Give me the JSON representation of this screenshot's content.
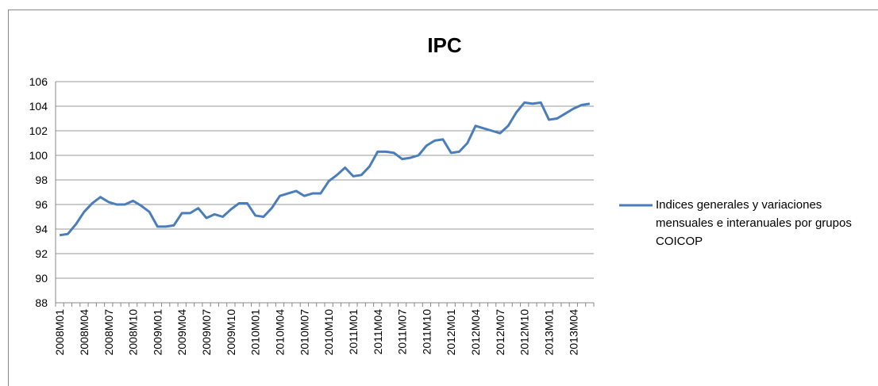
{
  "chart_data": {
    "type": "line",
    "title": "IPC",
    "categories": [
      "2008M01",
      null,
      null,
      "2008M04",
      null,
      null,
      "2008M07",
      null,
      null,
      "2008M10",
      null,
      null,
      "2009M01",
      null,
      null,
      "2009M04",
      null,
      null,
      "2009M07",
      null,
      null,
      "2009M10",
      null,
      null,
      "2010M01",
      null,
      null,
      "2010M04",
      null,
      null,
      "2010M07",
      null,
      null,
      "2010M10",
      null,
      null,
      "2011M01",
      null,
      null,
      "2011M04",
      null,
      null,
      "2011M07",
      null,
      null,
      "2011M10",
      null,
      null,
      "2012M01",
      null,
      null,
      "2012M04",
      null,
      null,
      "2012M07",
      null,
      null,
      "2012M10",
      null,
      null,
      "2013M01",
      null,
      null,
      "2013M04",
      null,
      null
    ],
    "series": [
      {
        "name": "Indices generales y variaciones mensuales e interanuales por grupos COICOP",
        "color": "#4a7ebb",
        "values": [
          93.5,
          93.6,
          94.4,
          95.4,
          96.1,
          96.6,
          96.2,
          96.0,
          96.0,
          96.3,
          95.9,
          95.4,
          94.2,
          94.2,
          94.3,
          95.3,
          95.3,
          95.7,
          94.9,
          95.2,
          95.0,
          95.6,
          96.1,
          96.1,
          95.1,
          95.0,
          95.7,
          96.7,
          96.9,
          97.1,
          96.7,
          96.9,
          96.9,
          97.9,
          98.4,
          99.0,
          98.3,
          98.4,
          99.1,
          100.3,
          100.3,
          100.2,
          99.7,
          99.8,
          100.0,
          100.8,
          101.2,
          101.3,
          100.2,
          100.3,
          101.0,
          102.4,
          102.2,
          102.0,
          101.8,
          102.4,
          103.5,
          104.3,
          104.2,
          104.3,
          102.9,
          103.0,
          103.4,
          103.8,
          104.1,
          104.2
        ]
      }
    ],
    "ylim": [
      88,
      106
    ],
    "yticks": [
      88,
      90,
      92,
      94,
      96,
      98,
      100,
      102,
      104,
      106
    ],
    "grid": true,
    "legend": "right"
  }
}
